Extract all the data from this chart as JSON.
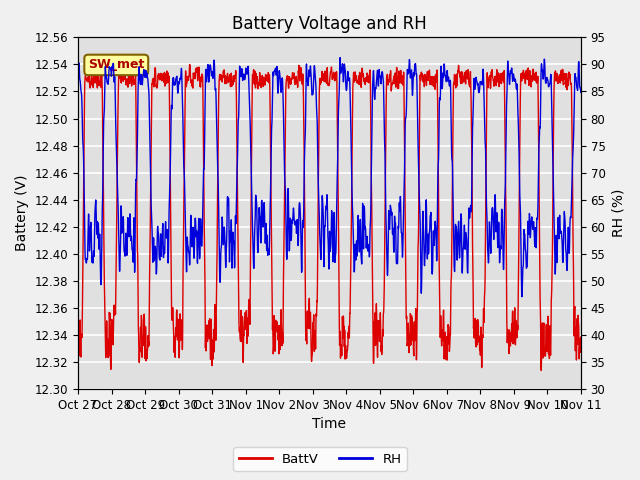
{
  "title": "Battery Voltage and RH",
  "xlabel": "Time",
  "ylabel_left": "Battery (V)",
  "ylabel_right": "RH (%)",
  "ylim_left": [
    12.3,
    12.56
  ],
  "ylim_right": [
    30,
    95
  ],
  "yticks_left": [
    12.3,
    12.32,
    12.34,
    12.36,
    12.38,
    12.4,
    12.42,
    12.44,
    12.46,
    12.48,
    12.5,
    12.52,
    12.54,
    12.56
  ],
  "yticks_right": [
    30,
    35,
    40,
    45,
    50,
    55,
    60,
    65,
    70,
    75,
    80,
    85,
    90,
    95
  ],
  "xtick_labels": [
    "Oct 27",
    "Oct 28",
    "Oct 29",
    "Oct 30",
    "Oct 31",
    "Nov 1",
    "Nov 2",
    "Nov 3",
    "Nov 4",
    "Nov 5",
    "Nov 6",
    "Nov 7",
    "Nov 8",
    "Nov 9",
    "Nov 10",
    "Nov 11"
  ],
  "batt_color": "#dd0000",
  "rh_color": "#0000dd",
  "legend_label_batt": "BattV",
  "legend_label_rh": "RH",
  "bg_color": "#f0f0f0",
  "plot_bg_color": "#e0e0e0",
  "annotation_text": "SW_met",
  "annotation_bg": "#ffffa0",
  "annotation_border": "#806000",
  "grid_color": "#ffffff",
  "title_fontsize": 12,
  "label_fontsize": 10,
  "tick_fontsize": 8.5
}
